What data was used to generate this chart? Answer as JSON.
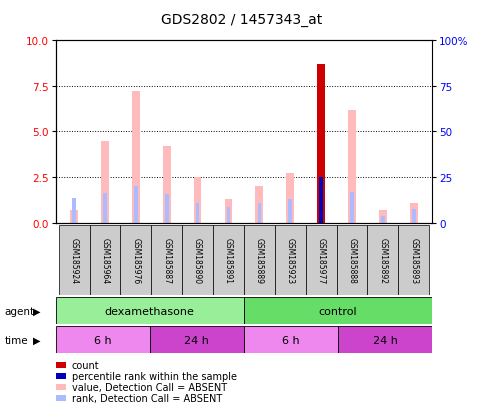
{
  "title": "GDS2802 / 1457343_at",
  "samples": [
    "GSM185924",
    "GSM185964",
    "GSM185976",
    "GSM185887",
    "GSM185890",
    "GSM185891",
    "GSM185889",
    "GSM185923",
    "GSM185977",
    "GSM185888",
    "GSM185892",
    "GSM185893"
  ],
  "value_bars": [
    0.7,
    4.5,
    7.2,
    4.2,
    2.5,
    1.3,
    2.0,
    2.7,
    8.7,
    6.2,
    0.7,
    1.1
  ],
  "rank_bars": [
    1.35,
    1.6,
    2.0,
    1.55,
    1.05,
    0.85,
    1.1,
    1.3,
    2.5,
    1.7,
    0.35,
    0.75
  ],
  "count_bar_index": 8,
  "count_bar_value": 8.7,
  "percentile_bar_value": 2.5,
  "agent_groups": [
    {
      "label": "dexamethasone",
      "start": 0,
      "end": 6,
      "color": "#99ee99"
    },
    {
      "label": "control",
      "start": 6,
      "end": 12,
      "color": "#66dd66"
    }
  ],
  "time_groups": [
    {
      "label": "6 h",
      "start": 0,
      "end": 3,
      "color": "#ee88ee"
    },
    {
      "label": "24 h",
      "start": 3,
      "end": 6,
      "color": "#cc44cc"
    },
    {
      "label": "6 h",
      "start": 6,
      "end": 9,
      "color": "#ee88ee"
    },
    {
      "label": "24 h",
      "start": 9,
      "end": 12,
      "color": "#cc44cc"
    }
  ],
  "ylim_left": [
    0,
    10
  ],
  "ylim_right": [
    0,
    100
  ],
  "yticks_left": [
    0,
    2.5,
    5.0,
    7.5,
    10
  ],
  "yticks_right": [
    0,
    25,
    50,
    75,
    100
  ],
  "value_color": "#ffbbbb",
  "rank_color": "#aabbff",
  "count_color": "#cc0000",
  "percentile_color": "#0000bb",
  "background_sample": "#cccccc",
  "legend_items": [
    {
      "label": "count",
      "color": "#cc0000"
    },
    {
      "label": "percentile rank within the sample",
      "color": "#0000bb"
    },
    {
      "label": "value, Detection Call = ABSENT",
      "color": "#ffbbbb"
    },
    {
      "label": "rank, Detection Call = ABSENT",
      "color": "#aabbff"
    }
  ]
}
